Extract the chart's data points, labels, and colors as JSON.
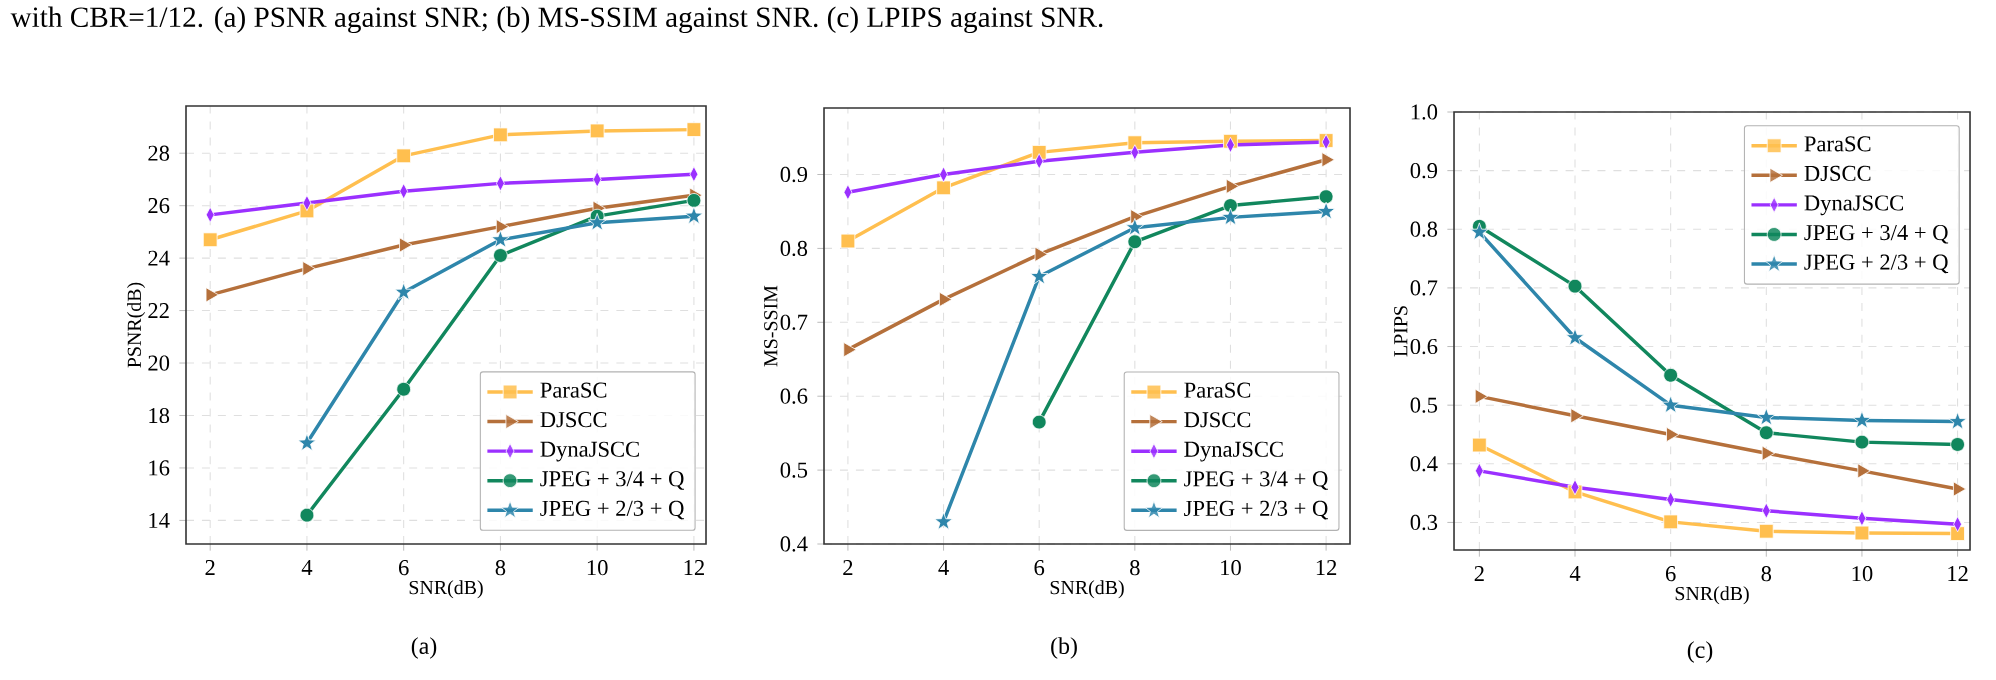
{
  "chart_data": [
    {
      "type": "line",
      "xlabel": "SNR(dB)",
      "ylabel": "PSNR(dB)",
      "annotations": [
        "with CBR=1/12. (a) PSNR against SNR; (b) MS-SSIM against SNR. (c) LPIPS against SNR.",
        "(a)"
      ],
      "x": [
        2,
        4,
        6,
        8,
        10,
        12
      ],
      "xlim": [
        1.5,
        12.25
      ],
      "ylim": [
        13.1,
        29.8
      ],
      "xticks": [
        2,
        4,
        6,
        8,
        10,
        12
      ],
      "yticks": [
        14,
        16,
        18,
        20,
        22,
        24,
        26,
        28
      ],
      "grid": true,
      "legend": "bottom right",
      "series": [
        {
          "name": "ParaSC",
          "color": "#ffbf4f",
          "marker": "square",
          "values": [
            24.7,
            25.8,
            27.9,
            28.7,
            28.85,
            28.9
          ]
        },
        {
          "name": "DJSCC",
          "color": "#b5703b",
          "marker": "triangle",
          "values": [
            22.6,
            23.6,
            24.5,
            25.2,
            25.9,
            26.4
          ]
        },
        {
          "name": "DynaJSCC",
          "color": "#9b30ff",
          "marker": "diamond",
          "values": [
            25.65,
            26.1,
            26.55,
            26.85,
            27.0,
            27.2
          ]
        },
        {
          "name": "JPEG + 3/4 + Q",
          "color": "#11875d",
          "marker": "circle",
          "values": [
            null,
            14.2,
            19.0,
            24.1,
            25.6,
            26.2
          ]
        },
        {
          "name": "JPEG + 2/3 + Q",
          "color": "#2e86ab",
          "marker": "star",
          "values": [
            null,
            16.95,
            22.7,
            24.7,
            25.35,
            25.6
          ]
        }
      ]
    },
    {
      "type": "line",
      "xlabel": "SNR(dB)",
      "ylabel": "MS-SSIM",
      "annotations": [
        "(b)"
      ],
      "x": [
        2,
        4,
        6,
        8,
        10,
        12
      ],
      "xlim": [
        1.5,
        12.5
      ],
      "ylim": [
        0.4,
        0.99
      ],
      "xticks": [
        2,
        4,
        6,
        8,
        10,
        12
      ],
      "yticks": [
        {
          "value": 0.4,
          "label": "0.4"
        },
        {
          "value": 0.5,
          "label": "0.5"
        },
        {
          "value": 0.6,
          "label": "0.6"
        },
        {
          "value": 0.7,
          "label": "0.7"
        },
        {
          "value": 0.8,
          "label": "0.8"
        },
        {
          "value": 0.9,
          "label": "0.9"
        }
      ],
      "grid": true,
      "legend": "bottom right",
      "series": [
        {
          "name": "ParaSC",
          "color": "#ffbf4f",
          "marker": "square",
          "values": [
            0.81,
            0.882,
            0.93,
            0.943,
            0.945,
            0.946
          ]
        },
        {
          "name": "DJSCC",
          "color": "#b5703b",
          "marker": "triangle",
          "values": [
            0.663,
            0.731,
            0.792,
            0.843,
            0.884,
            0.92
          ]
        },
        {
          "name": "DynaJSCC",
          "color": "#9b30ff",
          "marker": "diamond",
          "values": [
            0.876,
            0.9,
            0.918,
            0.93,
            0.94,
            0.944
          ]
        },
        {
          "name": "JPEG + 3/4 + Q",
          "color": "#11875d",
          "marker": "circle",
          "values": [
            null,
            null,
            0.565,
            0.809,
            0.858,
            0.87
          ]
        },
        {
          "name": "JPEG + 2/3 + Q",
          "color": "#2e86ab",
          "marker": "star",
          "values": [
            null,
            0.43,
            0.762,
            0.828,
            0.842,
            0.85
          ]
        }
      ]
    },
    {
      "type": "line",
      "xlabel": "SNR(dB)",
      "ylabel": "LPIPS",
      "annotations": [
        "(c)"
      ],
      "x": [
        2,
        4,
        6,
        8,
        10,
        12
      ],
      "xlim": [
        1.47,
        12.26
      ],
      "ylim": [
        0.253,
        1.0
      ],
      "xticks": [
        2,
        4,
        6,
        8,
        10,
        12
      ],
      "yticks": [
        {
          "value": 0.3,
          "label": "0.3"
        },
        {
          "value": 0.4,
          "label": "0.4"
        },
        {
          "value": 0.5,
          "label": "0.5"
        },
        {
          "value": 0.6,
          "label": "0.6"
        },
        {
          "value": 0.7,
          "label": "0.7"
        },
        {
          "value": 0.8,
          "label": "0.8"
        },
        {
          "value": 0.9,
          "label": "0.9"
        },
        {
          "value": 1.0,
          "label": "1.0"
        }
      ],
      "grid": true,
      "legend": "top right",
      "series": [
        {
          "name": "ParaSC",
          "color": "#ffbf4f",
          "marker": "square",
          "values": [
            0.432,
            0.352,
            0.301,
            0.285,
            0.282,
            0.281
          ]
        },
        {
          "name": "DJSCC",
          "color": "#b5703b",
          "marker": "triangle",
          "values": [
            0.515,
            0.482,
            0.45,
            0.418,
            0.388,
            0.357
          ]
        },
        {
          "name": "DynaJSCC",
          "color": "#9b30ff",
          "marker": "diamond",
          "values": [
            0.388,
            0.36,
            0.339,
            0.32,
            0.307,
            0.297
          ]
        },
        {
          "name": "JPEG + 3/4 + Q",
          "color": "#11875d",
          "marker": "circle",
          "values": [
            0.805,
            0.703,
            0.551,
            0.453,
            0.437,
            0.433
          ]
        },
        {
          "name": "JPEG + 2/3 + Q",
          "color": "#2e86ab",
          "marker": "star",
          "values": [
            0.795,
            0.615,
            0.5,
            0.479,
            0.474,
            0.472
          ]
        }
      ]
    }
  ]
}
